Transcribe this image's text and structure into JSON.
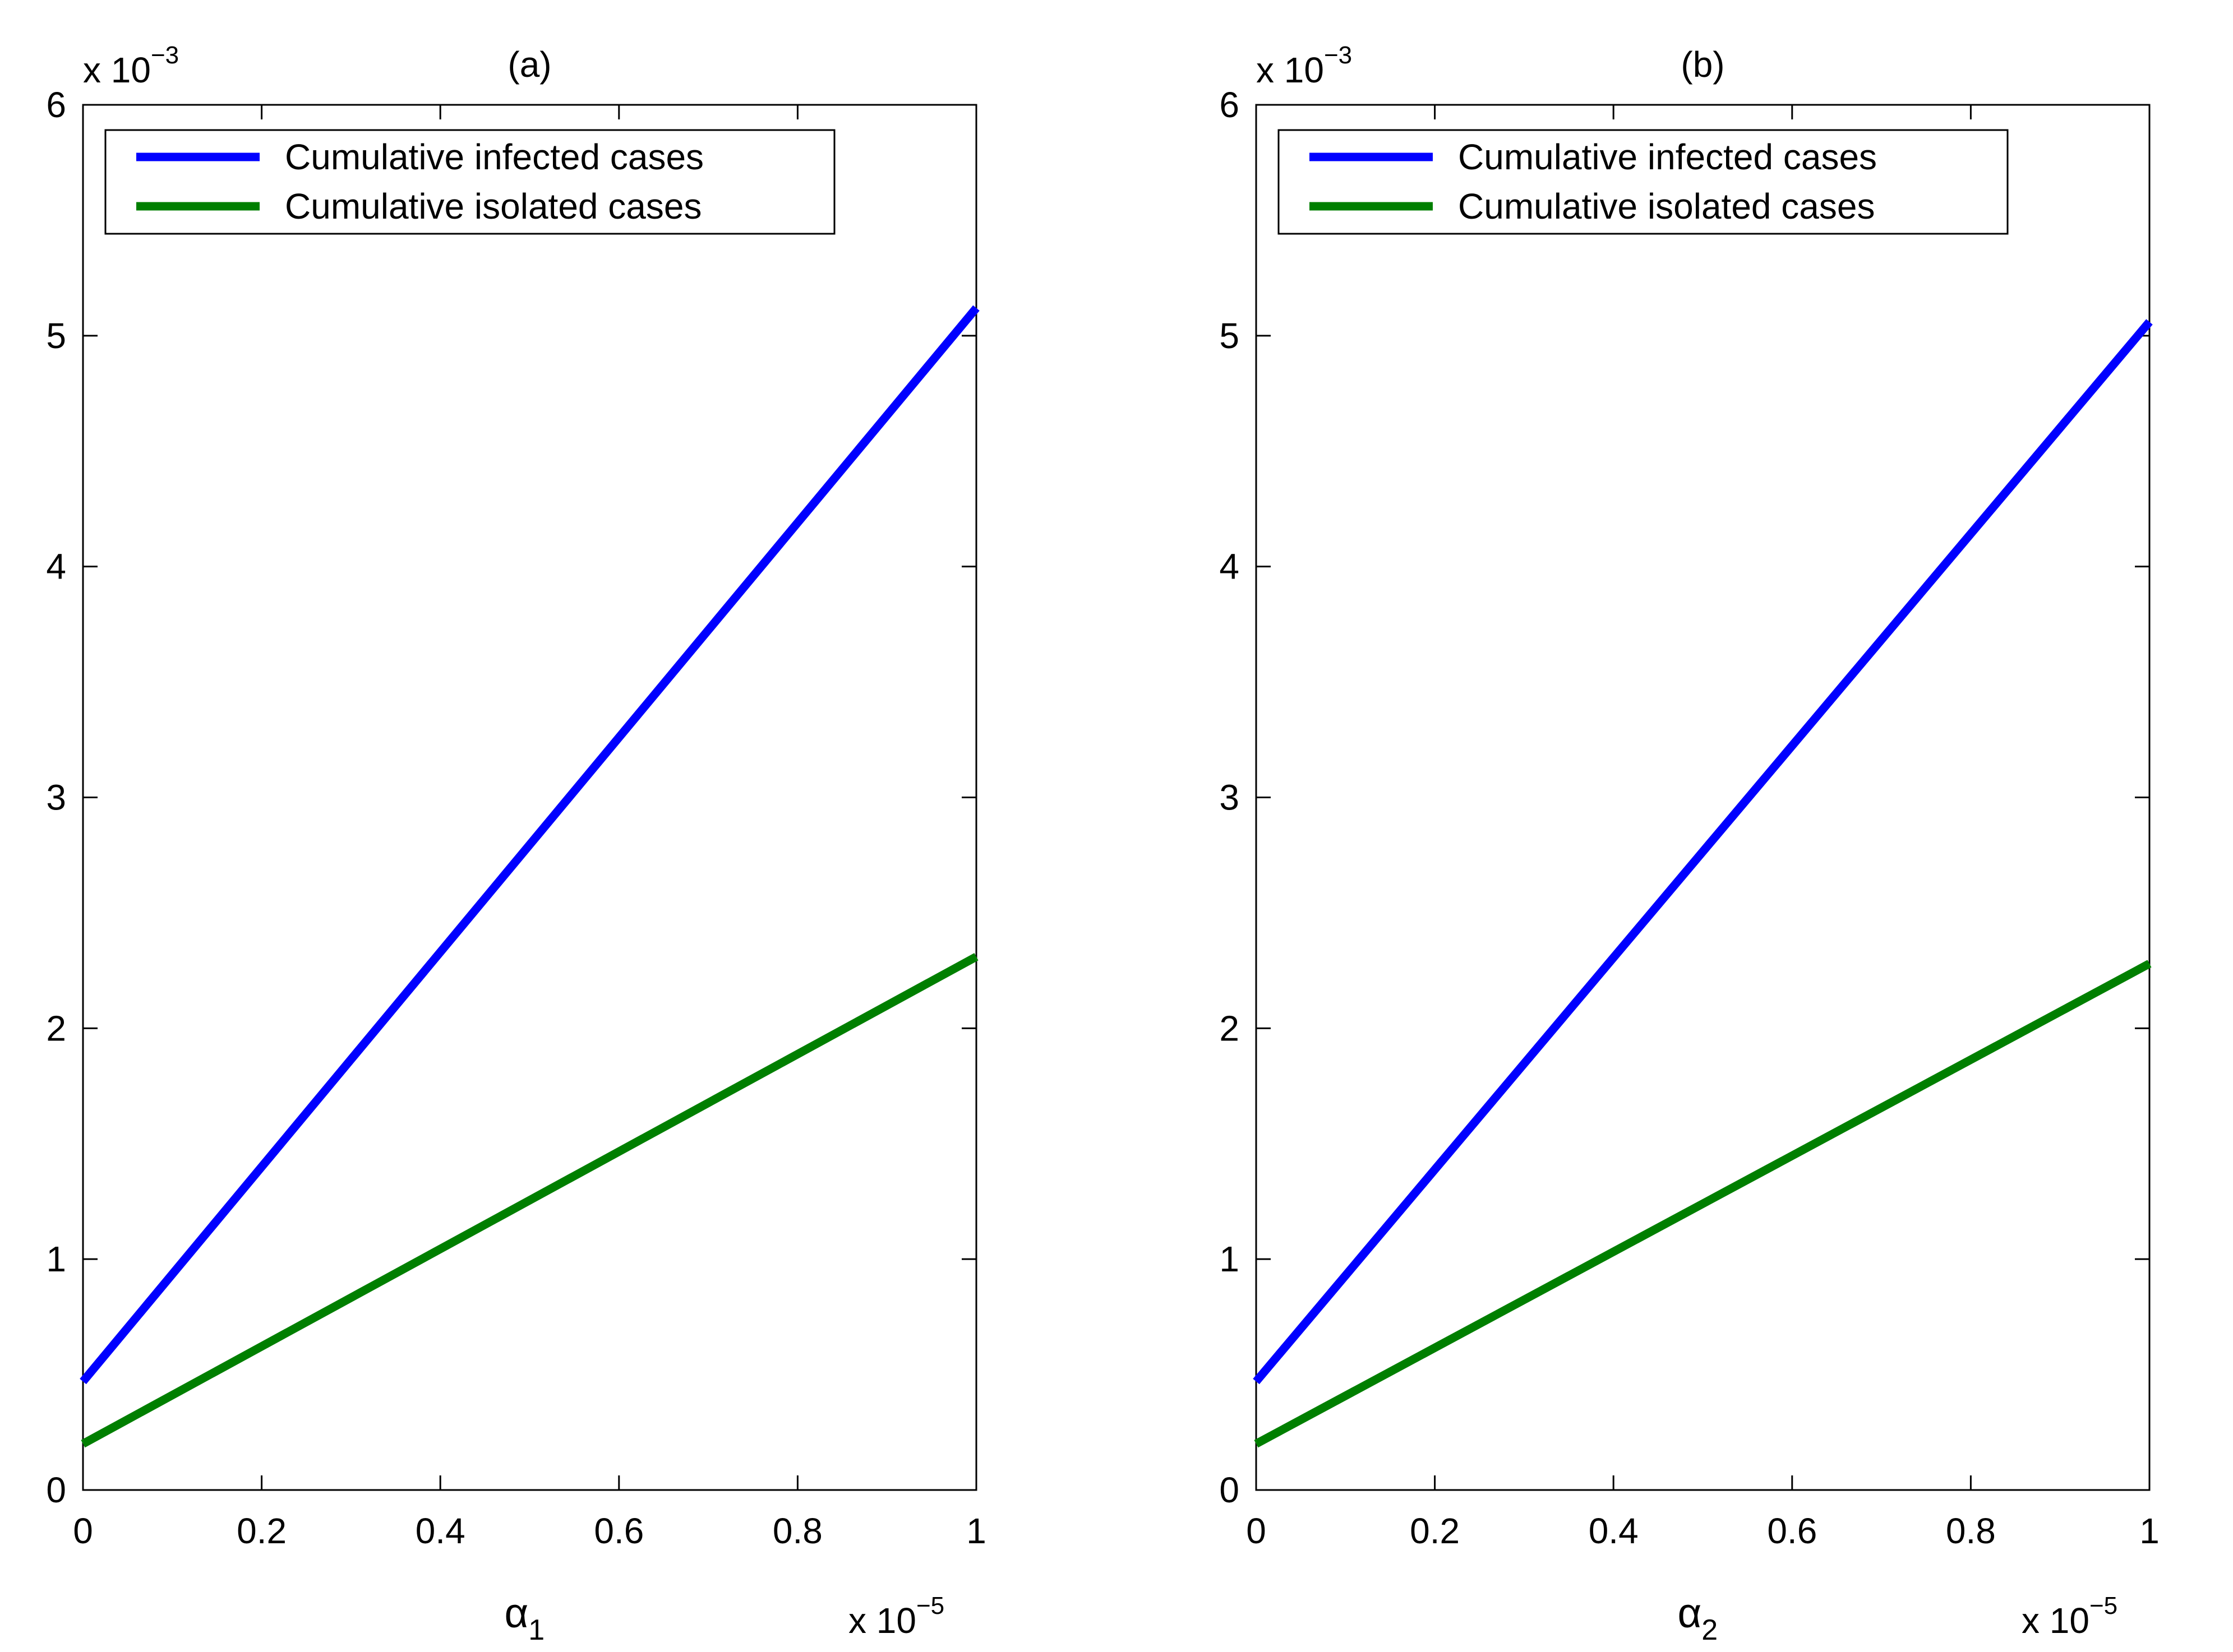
{
  "chart_data": [
    {
      "type": "line",
      "title": "(a)",
      "xlabel": {
        "symbol": "α",
        "subscript": "1"
      },
      "x_multiplier": {
        "base": "x 10",
        "exponent": "−5"
      },
      "y_multiplier": {
        "base": "x 10",
        "exponent": "−3"
      },
      "xlim": [
        0,
        1
      ],
      "ylim": [
        0,
        6
      ],
      "xticks": [
        0,
        0.2,
        0.4,
        0.6,
        0.8,
        1
      ],
      "xtick_labels": [
        "0",
        "0.2",
        "0.4",
        "0.6",
        "0.8",
        "1"
      ],
      "yticks": [
        0,
        1,
        2,
        3,
        4,
        5,
        6
      ],
      "ytick_labels": [
        "0",
        "1",
        "2",
        "3",
        "4",
        "5",
        "6"
      ],
      "grid": false,
      "legend_position": "top-left",
      "series": [
        {
          "name": "Cumulative infected cases",
          "color": "#0000ff",
          "x": [
            0,
            1
          ],
          "y": [
            0.47,
            5.12
          ]
        },
        {
          "name": "Cumulative isolated cases",
          "color": "#007f00",
          "x": [
            0,
            1
          ],
          "y": [
            0.2,
            2.31
          ]
        }
      ]
    },
    {
      "type": "line",
      "title": "(b)",
      "xlabel": {
        "symbol": "α",
        "subscript": "2"
      },
      "x_multiplier": {
        "base": "x 10",
        "exponent": "−5"
      },
      "y_multiplier": {
        "base": "x 10",
        "exponent": "−3"
      },
      "xlim": [
        0,
        1
      ],
      "ylim": [
        0,
        6
      ],
      "xticks": [
        0,
        0.2,
        0.4,
        0.6,
        0.8,
        1
      ],
      "xtick_labels": [
        "0",
        "0.2",
        "0.4",
        "0.6",
        "0.8",
        "1"
      ],
      "yticks": [
        0,
        1,
        2,
        3,
        4,
        5,
        6
      ],
      "ytick_labels": [
        "0",
        "1",
        "2",
        "3",
        "4",
        "5",
        "6"
      ],
      "grid": false,
      "legend_position": "top-left",
      "series": [
        {
          "name": "Cumulative infected cases",
          "color": "#0000ff",
          "x": [
            0,
            1
          ],
          "y": [
            0.47,
            5.06
          ]
        },
        {
          "name": "Cumulative isolated cases",
          "color": "#007f00",
          "x": [
            0,
            1
          ],
          "y": [
            0.2,
            2.28
          ]
        }
      ]
    }
  ]
}
